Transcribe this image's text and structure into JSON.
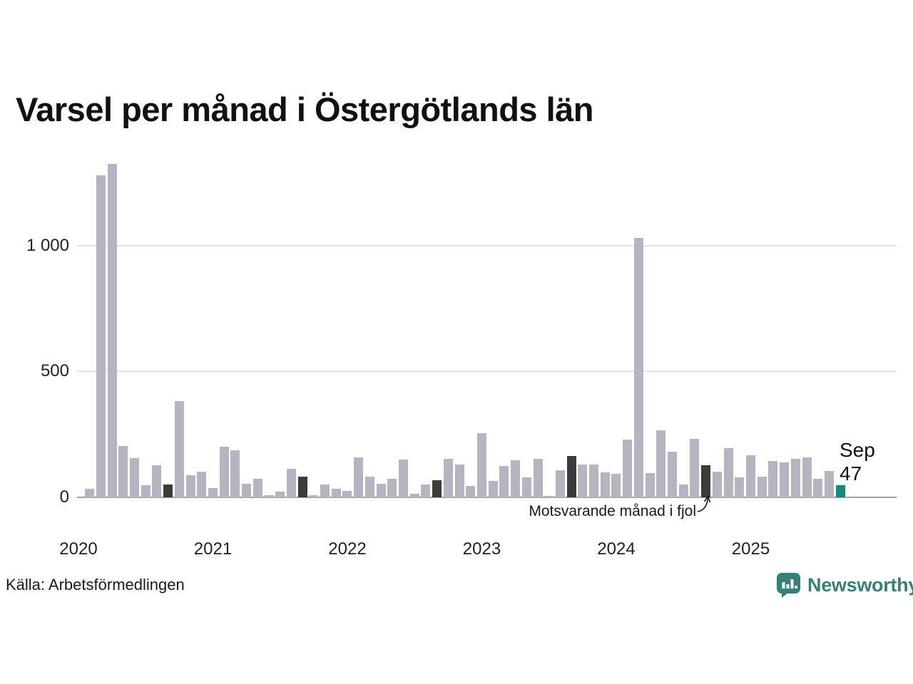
{
  "title": "Varsel per månad i Östergötlands län",
  "source": "Källa: Arbetsförmedlingen",
  "branding": {
    "name": "Newsworthy",
    "logo_icon": "newsworthy-chart-bubble-icon",
    "color": "#378079"
  },
  "annotation": {
    "text": "Motsvarande månad i fjol"
  },
  "current_label": {
    "month": "Sep",
    "value": "47"
  },
  "colors": {
    "bar": "#b6b4c1",
    "bar_last_year": "#3b3b3b",
    "bar_current": "#13897e",
    "gridline": "#e4e4e4",
    "baseline": "#a3a3a3",
    "text": "#111111"
  },
  "chart_data": {
    "type": "bar",
    "title": "Varsel per månad i Östergötlands län",
    "xlabel": "",
    "ylabel": "",
    "x_start": "2020-01",
    "x_end": "2025-09",
    "values": [
      0,
      35,
      1280,
      1325,
      205,
      155,
      48,
      126,
      51,
      381,
      87,
      101,
      37,
      202,
      188,
      53,
      73,
      8,
      22,
      112,
      81,
      8,
      51,
      34,
      25,
      158,
      81,
      53,
      73,
      149,
      14,
      51,
      67,
      154,
      129,
      45,
      256,
      65,
      124,
      146,
      79,
      154,
      6,
      107,
      163,
      129,
      129,
      98,
      93,
      228,
      1031,
      96,
      267,
      180,
      51,
      233,
      126,
      101,
      194,
      79,
      168,
      81,
      143,
      140,
      152,
      158,
      73,
      104,
      47
    ],
    "year_labels": [
      "2020",
      "2021",
      "2022",
      "2023",
      "2024",
      "2025"
    ],
    "yticks": [
      {
        "value": 0,
        "label": "0"
      },
      {
        "value": 500,
        "label": "500"
      },
      {
        "value": 1000,
        "label": "1 000"
      }
    ],
    "ylim": [
      0,
      1340
    ],
    "grid": "horizontal",
    "legend": "none",
    "dark_bar_indices": [
      8,
      20,
      32,
      44,
      56
    ],
    "dark_bar_meaning": "Motsvarande månad i fjol",
    "current_bar_index": 68,
    "current_bar_label": {
      "month": "Sep",
      "value": 47
    }
  }
}
